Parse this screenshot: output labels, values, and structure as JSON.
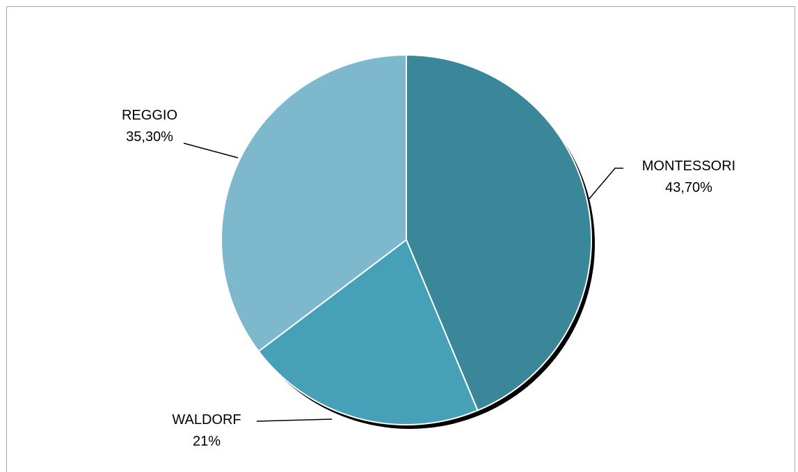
{
  "chart_data": {
    "type": "pie",
    "title": "",
    "legend": "none",
    "slices": [
      {
        "name": "MONTESSORI",
        "value": 43.7,
        "label": "43,70%",
        "color": "#3a8799"
      },
      {
        "name": "WALDORF",
        "value": 21.0,
        "label": "21%",
        "color": "#46a1b8"
      },
      {
        "name": "REGGIO",
        "value": 35.3,
        "label": "35,30%",
        "color": "#7db8cd"
      }
    ]
  }
}
